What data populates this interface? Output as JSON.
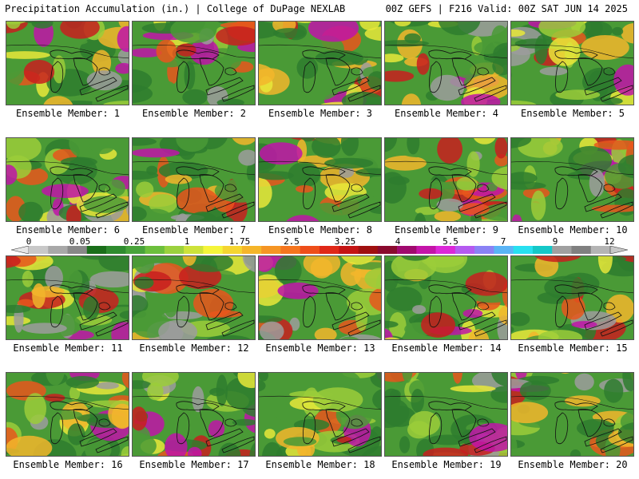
{
  "header": {
    "title_left": "Precipitation Accumulation (in.) | College of DuPage NEXLAB",
    "title_right": "00Z GEFS | F216 Valid: 00Z SAT JUN 14 2025"
  },
  "panels": [
    {
      "label": "Ensemble Member: 1"
    },
    {
      "label": "Ensemble Member: 2"
    },
    {
      "label": "Ensemble Member: 3"
    },
    {
      "label": "Ensemble Member: 4"
    },
    {
      "label": "Ensemble Member: 5"
    },
    {
      "label": "Ensemble Member: 6"
    },
    {
      "label": "Ensemble Member: 7"
    },
    {
      "label": "Ensemble Member: 8"
    },
    {
      "label": "Ensemble Member: 9"
    },
    {
      "label": "Ensemble Member: 10"
    },
    {
      "label": "Ensemble Member: 11"
    },
    {
      "label": "Ensemble Member: 12"
    },
    {
      "label": "Ensemble Member: 13"
    },
    {
      "label": "Ensemble Member: 14"
    },
    {
      "label": "Ensemble Member: 15"
    },
    {
      "label": "Ensemble Member: 16"
    },
    {
      "label": "Ensemble Member: 17"
    },
    {
      "label": "Ensemble Member: 18"
    },
    {
      "label": "Ensemble Member: 19"
    },
    {
      "label": "Ensemble Member: 20"
    }
  ],
  "legend": {
    "labels": [
      "0",
      "0.05",
      "0.25",
      "1",
      "1.75",
      "2.5",
      "3.25",
      "4",
      "5.5",
      "7",
      "9",
      "12"
    ],
    "colors": [
      "#c8c8c8",
      "#a8a8a8",
      "#888888",
      "#1a6e1a",
      "#2e8b2e",
      "#48a33a",
      "#6cbf3c",
      "#9bd13e",
      "#cde23a",
      "#f5f53a",
      "#f5d530",
      "#f5b52a",
      "#f59524",
      "#f5751e",
      "#ee4e1a",
      "#e02818",
      "#c41414",
      "#a01010",
      "#8a0a2e",
      "#a00a6e",
      "#c414a8",
      "#dc28d8",
      "#b45af0",
      "#8a82f5",
      "#5ab4f5",
      "#28e0f0",
      "#14c8c8",
      "#a0a0a0",
      "#808080",
      "#b4b4b4"
    ]
  },
  "fill_colors": [
    "#2e7d2e",
    "#4a9a36",
    "#9bcc3a",
    "#e8e83a",
    "#f2b62c",
    "#e8561c",
    "#c81e1e",
    "#c014a8",
    "#9c9c9c"
  ]
}
